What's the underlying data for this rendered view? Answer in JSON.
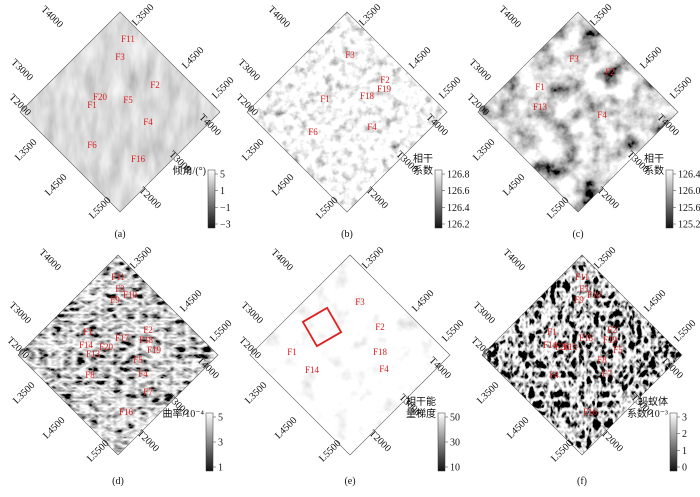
{
  "panels": [
    {
      "caption": "(a)",
      "axis_labels": [
        "T4000",
        "L3500",
        "T3000",
        "L4500",
        "L5500",
        "T2000",
        "T4000",
        "L3500",
        "T3000",
        "L4500",
        "T2000",
        "L5500"
      ],
      "faults": [
        "F11",
        "F3",
        "F2",
        "F20",
        "F1",
        "F5",
        "F4",
        "F6",
        "F16"
      ],
      "colorbar": {
        "title": [
          "倾角/(°)"
        ],
        "ticks": [
          "5",
          "1",
          "−1",
          "−3"
        ]
      }
    },
    {
      "caption": "(b)",
      "axis_labels": [
        "T4000",
        "L3500",
        "T3000",
        "L4500",
        "L5500",
        "T2000",
        "T4000",
        "L3500",
        "T3000",
        "L4500",
        "T2000",
        "L5500"
      ],
      "faults": [
        "F3",
        "F2",
        "F19",
        "F18",
        "F1",
        "F4",
        "F6"
      ],
      "colorbar": {
        "title": [
          "相干",
          "系数"
        ],
        "ticks": [
          "126.8",
          "126.6",
          "126.4",
          "126.2"
        ]
      }
    },
    {
      "caption": "(c)",
      "axis_labels": [
        "T4000",
        "L3500",
        "T3000",
        "L4500",
        "L5500",
        "T2000",
        "T4000",
        "L3500",
        "T3000",
        "L4500",
        "T2000",
        "L5500"
      ],
      "faults": [
        "F3",
        "F2",
        "F1",
        "F13",
        "F4"
      ],
      "colorbar": {
        "title": [
          "相干",
          "系数"
        ],
        "ticks": [
          "126.4",
          "126.0",
          "125.6",
          "125.2"
        ]
      }
    },
    {
      "caption": "(d)",
      "axis_labels": [
        "T4000",
        "L3500",
        "T3000",
        "L4500",
        "L5500",
        "T2000",
        "T4000",
        "L3500",
        "T3000",
        "L4500",
        "T2000",
        "L5500"
      ],
      "faults": [
        "F11",
        "F3",
        "F10",
        "F9",
        "F1",
        "F2",
        "F14",
        "F13",
        "F20",
        "F17",
        "F18",
        "F19",
        "F5",
        "F8",
        "F4",
        "F7",
        "F16"
      ],
      "colorbar": {
        "title": [
          "曲率/10⁻⁴"
        ],
        "ticks": [
          "5",
          "3",
          "1"
        ]
      }
    },
    {
      "caption": "(e)",
      "axis_labels": [
        "T4000",
        "L3500",
        "T3000",
        "L4500",
        "L5500",
        "T2000",
        "T4000",
        "L3500",
        "T3000",
        "L4500",
        "T2000",
        "L5500"
      ],
      "faults": [
        "F3",
        "F2",
        "F18",
        "F1",
        "F14",
        "F4"
      ],
      "colorbar": {
        "title": [
          "相干能",
          "量梯度"
        ],
        "ticks": [
          "50",
          "30",
          "10"
        ]
      }
    },
    {
      "caption": "(f)",
      "axis_labels": [
        "T4000",
        "L3500",
        "T3000",
        "L4500",
        "L5500",
        "T2000",
        "T4000",
        "L3500",
        "T3000",
        "L4500",
        "T2000",
        "L5500"
      ],
      "faults": [
        "F11",
        "F3",
        "F10",
        "F9",
        "F1",
        "F2",
        "F20",
        "F14",
        "F13",
        "F18",
        "F19",
        "F5",
        "F8",
        "F4",
        "F7",
        "F16"
      ],
      "colorbar": {
        "title": [
          "蚂蚁体",
          "系数/10⁻³"
        ],
        "ticks": [
          "3",
          "2",
          "1",
          "0"
        ]
      }
    }
  ]
}
